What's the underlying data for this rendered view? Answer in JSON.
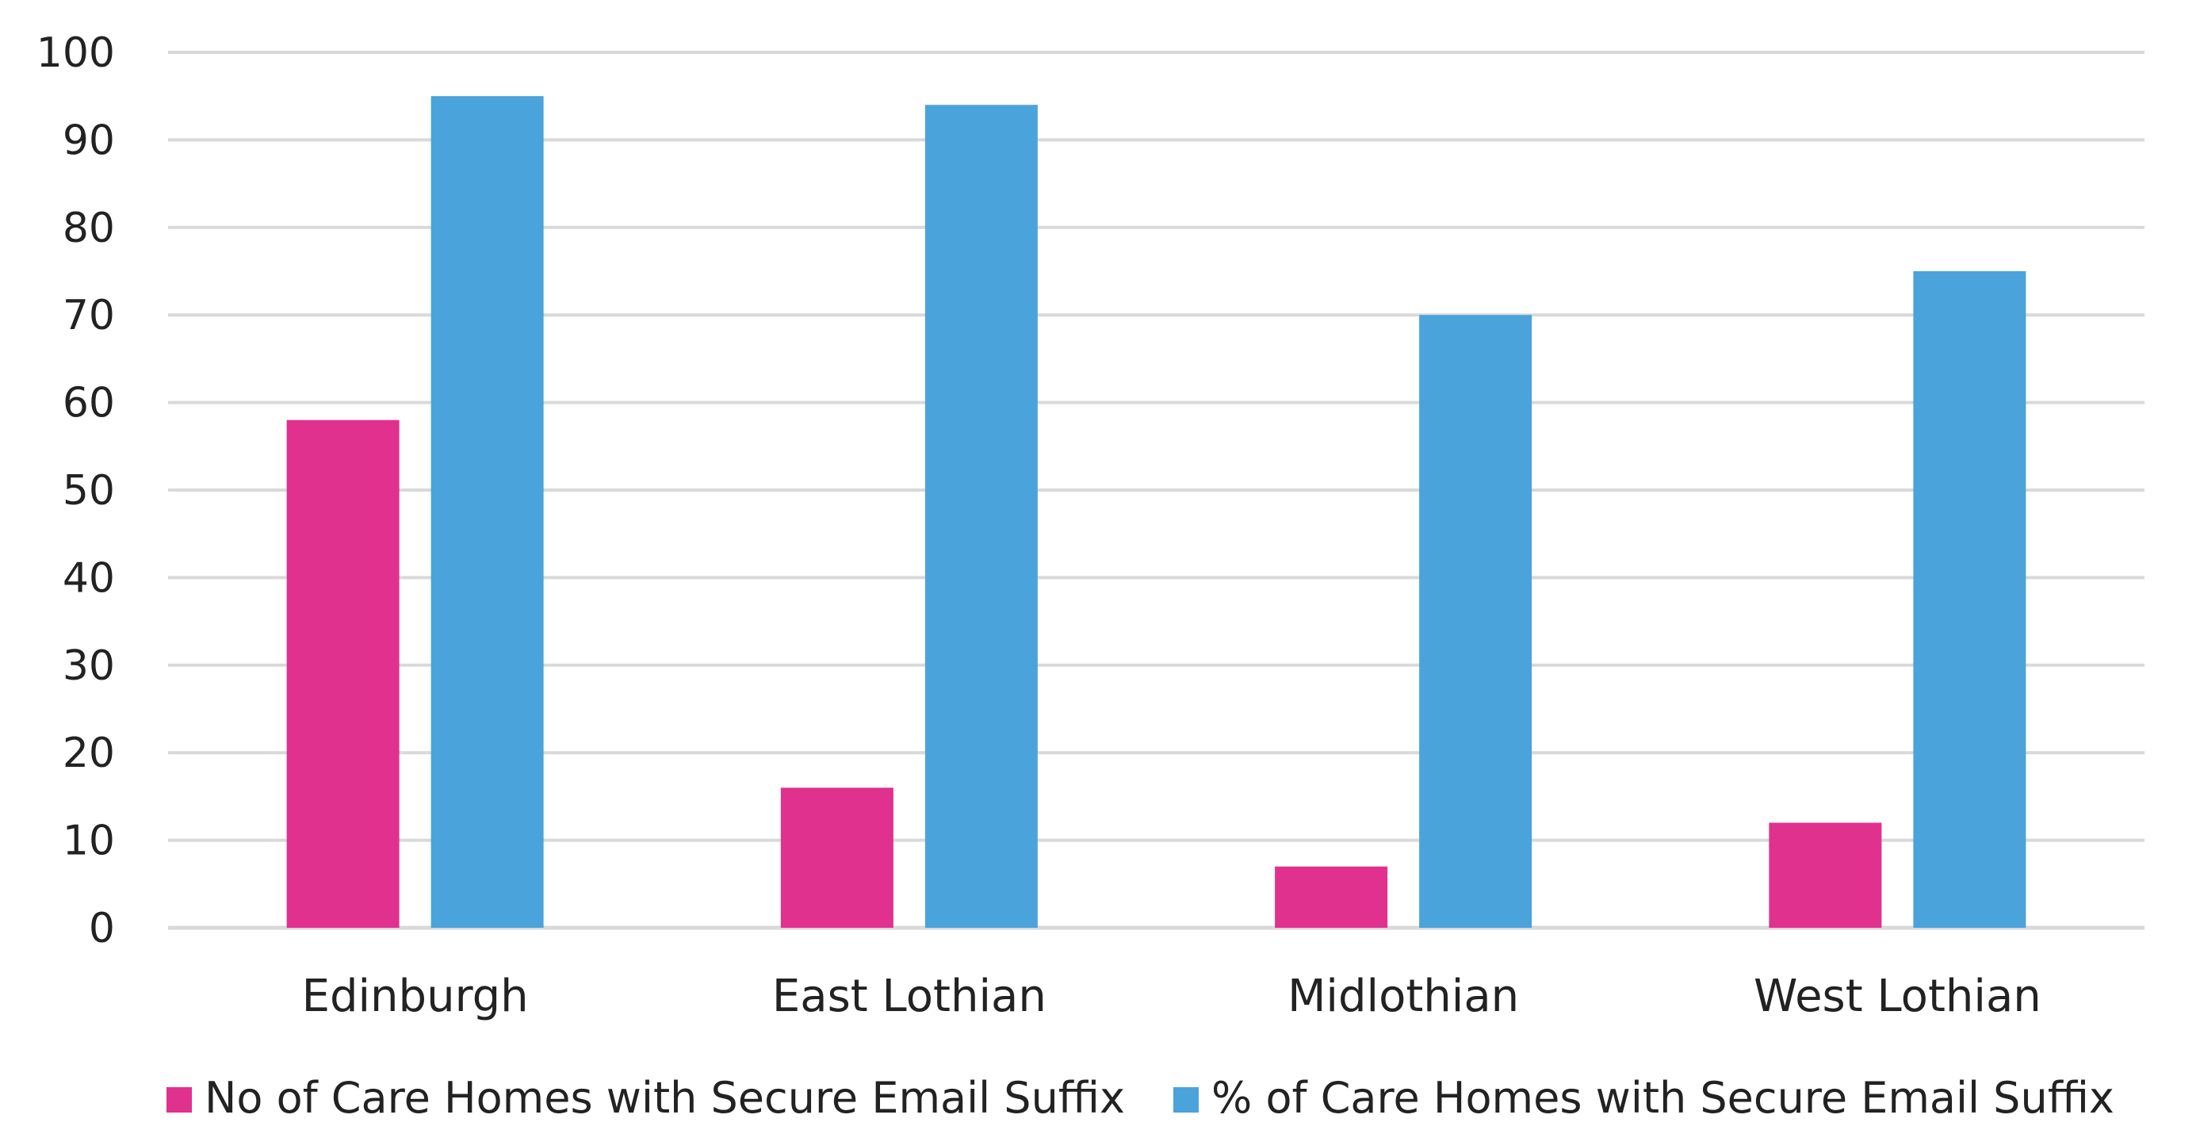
{
  "chart_data": {
    "type": "bar",
    "title": "",
    "xlabel": "",
    "ylabel": "",
    "ylim": [
      0,
      100
    ],
    "yticks": [
      "0",
      "10",
      "20",
      "30",
      "40",
      "50",
      "60",
      "70",
      "80",
      "90",
      "100"
    ],
    "grid": true,
    "legend_position": "bottom",
    "categories": [
      "Edinburgh",
      "East Lothian",
      "Midlothian",
      "West Lothian"
    ],
    "series": [
      {
        "name": "No of Care Homes with Secure Email Suffix",
        "color": "#E0318E",
        "values": [
          58,
          16,
          7,
          12
        ]
      },
      {
        "name": "% of Care Homes with Secure Email Suffix",
        "color": "#4BA3DB",
        "values": [
          95,
          94,
          70,
          75
        ]
      }
    ],
    "gridline_color": "#D9D9D9"
  }
}
